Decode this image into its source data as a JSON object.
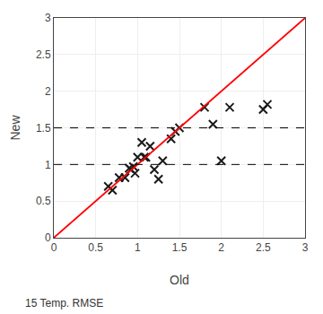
{
  "chart_data": {
    "type": "scatter",
    "xlabel": "Old",
    "ylabel": "New",
    "annotations": [
      "15 Temp. RMSE"
    ],
    "xlim": [
      0.0,
      3.0
    ],
    "ylim": [
      0.0,
      3.0
    ],
    "xticks": [
      0.0,
      0.5,
      1.0,
      1.5,
      2.0,
      2.5,
      3.0
    ],
    "yticks": [
      0.0,
      0.5,
      1.0,
      1.5,
      2.0,
      2.5,
      3.0
    ],
    "grid": true,
    "series": [
      {
        "type": "scatter",
        "marker": "x",
        "color": "#1a1a1a",
        "x": [
          0.65,
          0.7,
          0.78,
          0.85,
          0.9,
          0.92,
          0.95,
          0.97,
          1.0,
          1.05,
          1.08,
          1.1,
          1.15,
          1.2,
          1.25,
          1.4,
          1.45,
          1.5,
          1.8,
          1.9,
          2.0,
          2.1,
          2.5,
          2.55,
          1.3
        ],
        "values": [
          0.7,
          0.65,
          0.82,
          0.82,
          0.95,
          0.93,
          0.97,
          0.88,
          1.1,
          1.3,
          1.1,
          1.1,
          1.25,
          0.93,
          0.8,
          1.35,
          1.45,
          1.5,
          1.78,
          1.55,
          1.05,
          1.78,
          1.75,
          1.82,
          1.05
        ]
      },
      {
        "type": "line",
        "line_style": "solid",
        "color": "#ff0000",
        "x": [
          0,
          3
        ],
        "values": [
          0,
          3
        ]
      },
      {
        "type": "line",
        "line_style": "dashed",
        "color": "#000000",
        "x": [
          0,
          3
        ],
        "values": [
          1.0,
          1.0
        ]
      },
      {
        "type": "line",
        "line_style": "dashed",
        "color": "#000000",
        "x": [
          0,
          3
        ],
        "values": [
          1.5,
          1.5
        ]
      }
    ]
  }
}
